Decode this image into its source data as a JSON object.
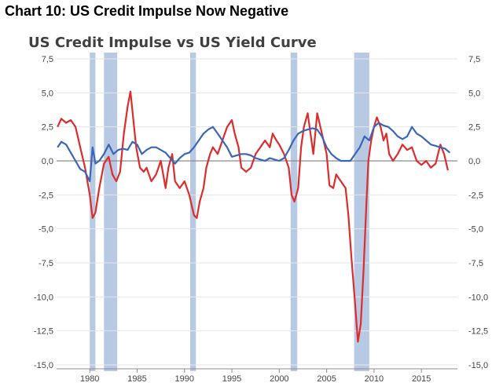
{
  "heading": "Chart 10: US Credit Impulse Now Negative",
  "chart_data": {
    "type": "line",
    "title": "US Credit Impulse vs US Yield Curve",
    "xlabel": "",
    "ylabel": "",
    "xlim": [
      1976.5,
      2018.8
    ],
    "ylim": [
      -15,
      7.5
    ],
    "y_ticks": [
      "7,5",
      "5,0",
      "2,5",
      "0,0",
      "-2,5",
      "-5,0",
      "-7,5",
      "-10,0",
      "-12,5",
      "-15,0"
    ],
    "y_tick_values": [
      7.5,
      5,
      2.5,
      0,
      -2.5,
      -5,
      -7.5,
      -10,
      -12.5,
      -15
    ],
    "x_ticks": [
      "1980",
      "1985",
      "1990",
      "1995",
      "2000",
      "2005",
      "2010",
      "2015"
    ],
    "x_tick_values": [
      1980,
      1985,
      1990,
      1995,
      2000,
      2005,
      2010,
      2015
    ],
    "grid": true,
    "recessions": [
      [
        1980.0,
        1980.6
      ],
      [
        1981.5,
        1982.9
      ],
      [
        1990.6,
        1991.2
      ],
      [
        2001.2,
        2001.9
      ],
      [
        2007.9,
        2009.5
      ]
    ],
    "colors": {
      "series_red": "#dd2c2c",
      "series_blue": "#3a66b8",
      "recession": "#b8c9e3",
      "grid": "#e6e6e6",
      "zero": "#8c8c8c"
    },
    "series": [
      {
        "color": "#dd2c2c",
        "x": [
          1976.6,
          1977.0,
          1977.5,
          1978.0,
          1978.5,
          1979.0,
          1979.5,
          1980.0,
          1980.3,
          1980.6,
          1981.0,
          1981.5,
          1982.0,
          1982.4,
          1982.8,
          1983.2,
          1983.6,
          1984.0,
          1984.3,
          1984.6,
          1984.9,
          1985.3,
          1985.7,
          1986.0,
          1986.5,
          1987.0,
          1987.5,
          1988.0,
          1988.3,
          1988.7,
          1989.0,
          1989.5,
          1990.0,
          1990.5,
          1991.0,
          1991.3,
          1991.6,
          1992.0,
          1992.3,
          1992.7,
          1993.0,
          1993.5,
          1994.0,
          1994.5,
          1995.0,
          1995.3,
          1995.7,
          1996.0,
          1996.5,
          1997.0,
          1997.5,
          1998.0,
          1998.5,
          1999.0,
          1999.3,
          1999.7,
          2000.0,
          2000.5,
          2001.0,
          2001.3,
          2001.6,
          2002.0,
          2002.3,
          2002.6,
          2003.0,
          2003.3,
          2003.6,
          2004.0,
          2004.5,
          2005.0,
          2005.3,
          2005.7,
          2006.0,
          2006.5,
          2007.0,
          2007.3,
          2007.6,
          2008.0,
          2008.3,
          2008.6,
          2008.9,
          2009.2,
          2009.4,
          2009.7,
          2010.0,
          2010.3,
          2010.7,
          2011.0,
          2011.3,
          2011.6,
          2012.0,
          2012.5,
          2013.0,
          2013.5,
          2014.0,
          2014.5,
          2015.0,
          2015.5,
          2016.0,
          2016.5,
          2017.0,
          2017.4,
          2017.8
        ],
        "values": [
          2.5,
          3.1,
          2.8,
          3.0,
          2.5,
          1.0,
          -0.5,
          -2.5,
          -4.2,
          -3.8,
          -2.0,
          -0.2,
          0.3,
          -1.0,
          -1.5,
          -0.8,
          2.0,
          4.0,
          5.1,
          3.0,
          1.0,
          -0.5,
          -0.8,
          -0.5,
          -1.5,
          -1.0,
          0.0,
          -2.0,
          -0.5,
          0.5,
          -1.5,
          -2.0,
          -1.5,
          -2.5,
          -4.0,
          -4.2,
          -3.0,
          -2.0,
          -0.5,
          0.5,
          1.0,
          0.5,
          1.5,
          2.5,
          3.0,
          2.0,
          1.0,
          -0.5,
          -0.8,
          -0.5,
          0.5,
          1.0,
          1.5,
          1.0,
          2.0,
          1.5,
          1.2,
          0.5,
          -0.5,
          -2.5,
          -3.0,
          -2.0,
          1.0,
          2.5,
          3.5,
          2.0,
          0.5,
          3.5,
          2.0,
          0.5,
          -1.8,
          -2.0,
          -1.0,
          -1.5,
          -2.0,
          -4.0,
          -7.0,
          -10.5,
          -13.3,
          -12.0,
          -8.0,
          -3.0,
          0.0,
          1.5,
          2.5,
          3.2,
          2.5,
          1.5,
          2.0,
          0.5,
          0.0,
          0.5,
          1.2,
          0.8,
          1.0,
          0.0,
          -0.3,
          0.0,
          -0.5,
          -0.2,
          1.2,
          0.5,
          -0.7
        ]
      },
      {
        "color": "#3a66b8",
        "x": [
          1976.6,
          1977.0,
          1977.5,
          1978.0,
          1978.5,
          1979.0,
          1979.5,
          1980.0,
          1980.3,
          1980.6,
          1981.0,
          1981.5,
          1982.0,
          1982.5,
          1983.0,
          1983.5,
          1984.0,
          1984.5,
          1985.0,
          1985.5,
          1986.0,
          1986.5,
          1987.0,
          1987.5,
          1988.0,
          1988.5,
          1989.0,
          1989.5,
          1990.0,
          1990.5,
          1991.0,
          1991.5,
          1992.0,
          1992.5,
          1993.0,
          1993.5,
          1994.0,
          1994.5,
          1995.0,
          1995.5,
          1996.0,
          1996.5,
          1997.0,
          1997.5,
          1998.0,
          1998.5,
          1999.0,
          1999.5,
          2000.0,
          2000.5,
          2001.0,
          2001.5,
          2002.0,
          2002.5,
          2003.0,
          2003.5,
          2004.0,
          2004.5,
          2005.0,
          2005.5,
          2006.0,
          2006.5,
          2007.0,
          2007.5,
          2008.0,
          2008.5,
          2009.0,
          2009.5,
          2010.0,
          2010.5,
          2011.0,
          2011.5,
          2012.0,
          2012.5,
          2013.0,
          2013.5,
          2014.0,
          2014.5,
          2015.0,
          2015.5,
          2016.0,
          2016.5,
          2017.0,
          2017.5,
          2018.0
        ],
        "values": [
          1.0,
          1.4,
          1.2,
          0.6,
          0.0,
          -0.6,
          -0.8,
          -1.5,
          1.0,
          -0.2,
          0.0,
          0.5,
          1.2,
          0.5,
          0.8,
          0.9,
          0.8,
          1.4,
          1.2,
          0.5,
          0.8,
          1.0,
          1.0,
          0.8,
          0.6,
          0.2,
          -0.2,
          0.2,
          0.5,
          0.6,
          1.0,
          1.5,
          2.0,
          2.3,
          2.5,
          2.0,
          1.5,
          1.0,
          0.3,
          0.4,
          0.5,
          0.5,
          0.4,
          0.2,
          0.1,
          0.0,
          0.2,
          0.1,
          0.0,
          0.2,
          0.8,
          1.5,
          2.0,
          2.2,
          2.3,
          2.4,
          2.3,
          1.8,
          1.0,
          0.5,
          0.2,
          0.0,
          0.0,
          0.0,
          0.5,
          1.0,
          1.8,
          1.5,
          2.5,
          2.8,
          2.6,
          2.5,
          2.2,
          1.8,
          1.6,
          1.8,
          2.5,
          2.0,
          1.8,
          1.5,
          1.2,
          1.1,
          1.0,
          0.9,
          0.6
        ]
      }
    ]
  }
}
